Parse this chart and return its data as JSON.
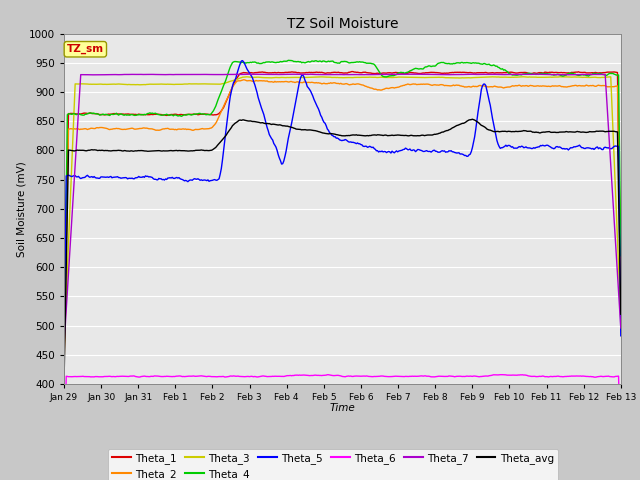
{
  "title": "TZ Soil Moisture",
  "xlabel": "Time",
  "ylabel": "Soil Moisture (mV)",
  "ylim": [
    400,
    1000
  ],
  "yticks": [
    400,
    450,
    500,
    550,
    600,
    650,
    700,
    750,
    800,
    850,
    900,
    950,
    1000
  ],
  "fig_bg_color": "#c8c8c8",
  "plot_bg_color": "#e8e8e8",
  "colors": {
    "Theta_1": "#dd0000",
    "Theta_2": "#ff8800",
    "Theta_3": "#cccc00",
    "Theta_4": "#00cc00",
    "Theta_5": "#0000ff",
    "Theta_6": "#ff00ff",
    "Theta_7": "#aa00cc",
    "Theta_avg": "#000000"
  },
  "tick_labels": [
    "Jan 29",
    "Jan 30",
    "Jan 31",
    "Feb 1",
    "Feb 2",
    "Feb 3",
    "Feb 4",
    "Feb 5",
    "Feb 6",
    "Feb 7",
    "Feb 8",
    "Feb 9",
    "Feb 10",
    "Feb 11",
    "Feb 12",
    "Feb 13"
  ],
  "num_points": 500
}
